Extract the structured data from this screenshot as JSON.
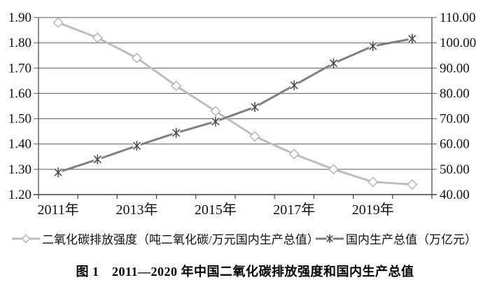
{
  "figure": {
    "caption": "图 1　2011—2020 年中国二氧化碳排放强度和国内生产总值"
  },
  "chart_data": {
    "type": "line",
    "title": "",
    "categories": [
      "2011年",
      "2012年",
      "2013年",
      "2014年",
      "2015年",
      "2016年",
      "2017年",
      "2018年",
      "2019年",
      "2020年"
    ],
    "series": [
      {
        "name": "二氧化碳排放强度（吨二氧化碳/万元国内生产总值）",
        "axis": "left",
        "marker": "diamond",
        "color": "#bcbcbc",
        "marker_color": "#b3b3b3",
        "values": [
          1.88,
          1.82,
          1.74,
          1.63,
          1.53,
          1.43,
          1.36,
          1.3,
          1.25,
          1.24
        ]
      },
      {
        "name": "国内生产总值（万亿元）",
        "axis": "right",
        "marker": "asterisk",
        "color": "#7f7f7f",
        "marker_color": "#4d4d4d",
        "values": [
          48.8,
          53.9,
          59.3,
          64.4,
          68.9,
          74.6,
          83.2,
          91.9,
          98.7,
          101.6
        ]
      }
    ],
    "left_axis": {
      "min": 1.2,
      "max": 1.9,
      "step": 0.1,
      "tick_labels": [
        "1.20",
        "1.30",
        "1.40",
        "1.50",
        "1.60",
        "1.70",
        "1.80",
        "1.90"
      ]
    },
    "right_axis": {
      "min": 40,
      "max": 110,
      "step": 10,
      "tick_labels": [
        "40.00",
        "50.00",
        "60.00",
        "70.00",
        "80.00",
        "90.00",
        "100.00",
        "110.00"
      ]
    },
    "x_axis": {
      "visible_tick_labels": [
        "2011年",
        "2013年",
        "2015年",
        "2017年",
        "2019年"
      ],
      "visible_tick_indices": [
        0,
        2,
        4,
        6,
        8
      ]
    },
    "grid": true,
    "grid_color": "#595959",
    "axis_color": "#404040",
    "text_color": "#111111",
    "legend_position": "bottom"
  }
}
